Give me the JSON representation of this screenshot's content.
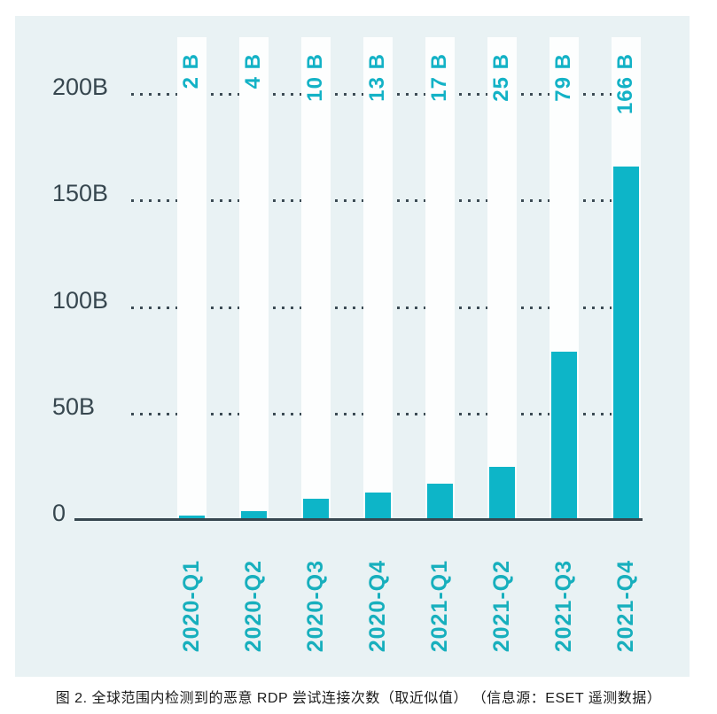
{
  "figure": {
    "caption": "图 2. 全球范围内检测到的恶意 RDP 尝试连接次数（取近似值） （信息源：ESET 遥测数据）"
  },
  "chart_data": {
    "type": "bar",
    "title": "",
    "xlabel": "",
    "ylabel": "",
    "unit": "B (billions)",
    "categories": [
      "2020-Q1",
      "2020-Q2",
      "2020-Q3",
      "2020-Q4",
      "2021-Q1",
      "2021-Q2",
      "2021-Q3",
      "2021-Q4"
    ],
    "values": [
      2,
      4,
      10,
      13,
      17,
      25,
      79,
      166
    ],
    "bar_labels": [
      "2 B",
      "4 B",
      "10 B",
      "13 B",
      "17 B",
      "25 B",
      "79 B",
      "166 B"
    ],
    "y_ticks": [
      {
        "label": "200B",
        "value": 200
      },
      {
        "label": "150B",
        "value": 150
      },
      {
        "label": "100B",
        "value": 100
      },
      {
        "label": "50B",
        "value": 50
      },
      {
        "label": "0",
        "value": 0
      }
    ],
    "ylim": [
      0,
      200
    ],
    "grid": "horizontal-dotted",
    "legend_position": "none",
    "bar_label_rotation": "vertical-bottom-to-top",
    "category_label_rotation": "vertical-bottom-to-top"
  },
  "colors": {
    "bar": "#0db5c8",
    "value_label": "#13b2c6",
    "category_label": "#17afbd",
    "axis_text": "#37474f",
    "axis_line": "#37474f",
    "grid_dot": "#3c4b54",
    "panel_background": "#e9f2f4",
    "column_band": "#fdfefe",
    "caption_text": "#1c1c1c",
    "page_background": "#ffffff"
  }
}
